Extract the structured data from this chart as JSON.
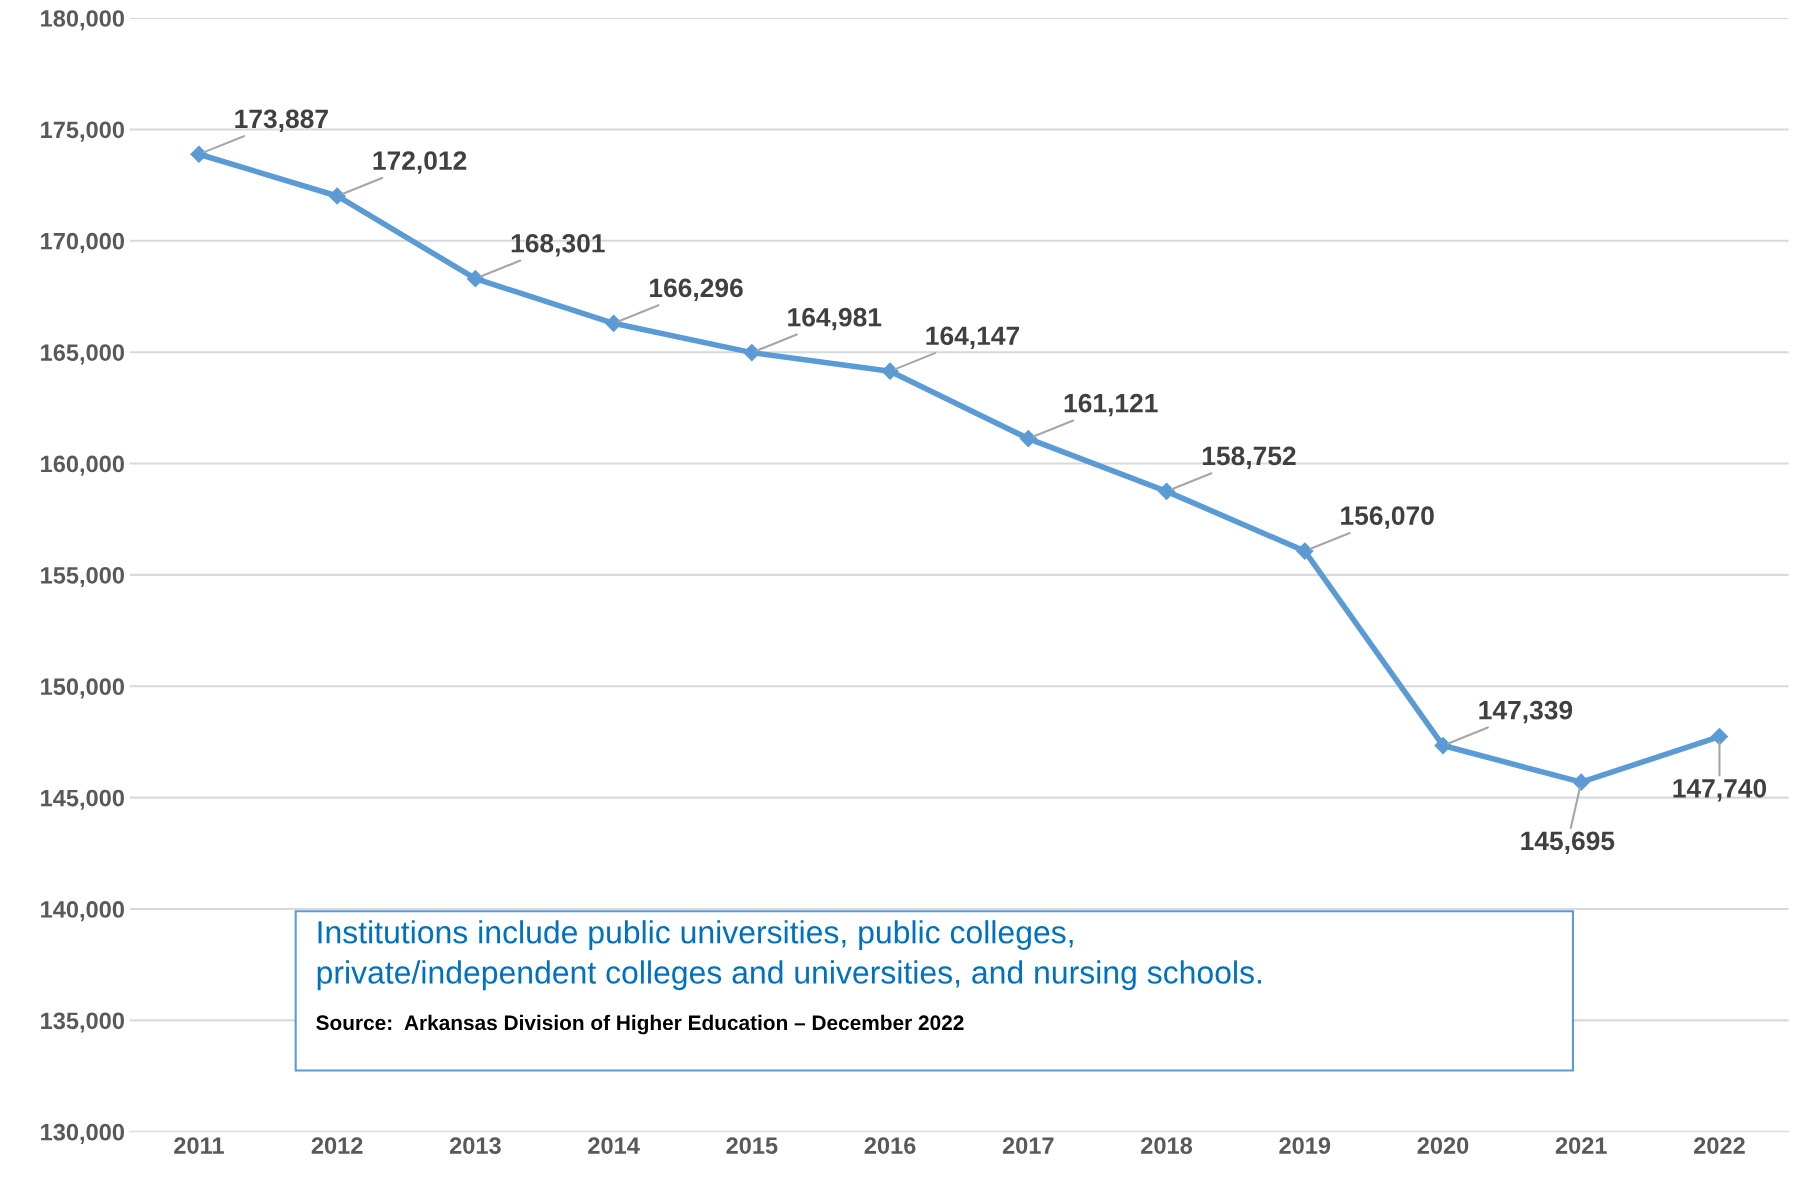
{
  "chart_data": {
    "type": "line",
    "categories": [
      "2011",
      "2012",
      "2013",
      "2014",
      "2015",
      "2016",
      "2017",
      "2018",
      "2019",
      "2020",
      "2021",
      "2022"
    ],
    "series": [
      {
        "color": "#5b9bd5",
        "values": [
          173887,
          172012,
          168301,
          166296,
          164981,
          164147,
          161121,
          158752,
          156070,
          147339,
          145695,
          147740
        ],
        "value_labels": [
          "173,887",
          "172,012",
          "168,301",
          "166,296",
          "164,981",
          "164,147",
          "161,121",
          "158,752",
          "156,070",
          "147,339",
          "145,695",
          "147,740"
        ]
      }
    ],
    "ylim": [
      130000,
      180000
    ],
    "yticks": [
      {
        "value": 130000,
        "label": "130,000"
      },
      {
        "value": 135000,
        "label": "135,000"
      },
      {
        "value": 140000,
        "label": "140,000"
      },
      {
        "value": 145000,
        "label": "145,000"
      },
      {
        "value": 150000,
        "label": "150,000"
      },
      {
        "value": 155000,
        "label": "155,000"
      },
      {
        "value": 160000,
        "label": "160,000"
      },
      {
        "value": 165000,
        "label": "165,000"
      },
      {
        "value": 170000,
        "label": "170,000"
      },
      {
        "value": 175000,
        "label": "175,000"
      },
      {
        "value": 180000,
        "label": "180,000"
      }
    ],
    "grid": "y",
    "marker": "diamond",
    "line_style": "solid",
    "legend": false,
    "annotations": [
      "Institutions include public universities, public colleges,\nprivate/independent colleges and universities, and nursing schools.",
      "Source:  Arkansas Division of Higher Education – December 2022"
    ]
  }
}
